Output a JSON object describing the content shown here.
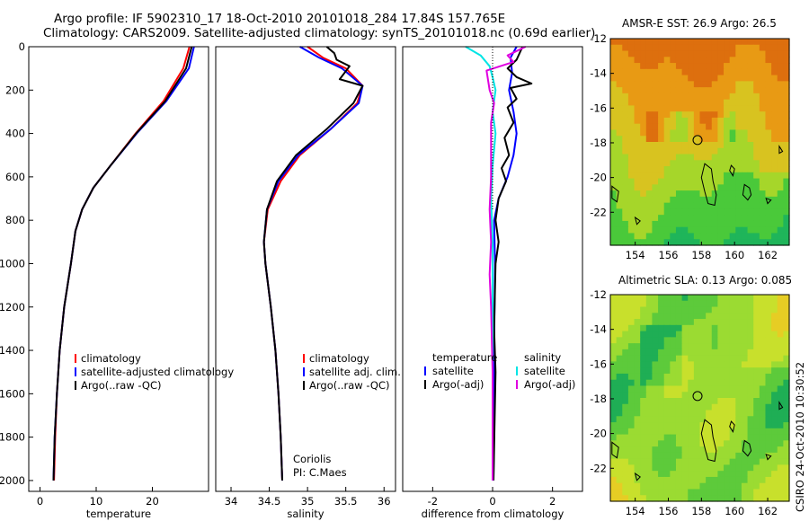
{
  "header": {
    "line1": "Argo profile: IF 5902310_17 18-Oct-2010 20101018_284 17.84S 157.765E",
    "line2": "Climatology: CARS2009. Satellite-adjusted climatology: synTS_20101018.nc (0.69d earlier)"
  },
  "credit": "CSIRO 24-Oct-2010 10:30:52",
  "colors": {
    "climatology": "#ff0000",
    "satellite": "#0000ff",
    "argo": "#000000",
    "salinity_satellite": "#00e5e5",
    "salinity_argo": "#e000e0"
  },
  "chart_data": [
    {
      "id": "temperature",
      "type": "line",
      "xlabel": "temperature",
      "ylabel": "",
      "xlim": [
        -2,
        30
      ],
      "ylim": [
        2050,
        0
      ],
      "xticks": [
        0,
        10,
        20
      ],
      "yticks": [
        0,
        200,
        400,
        600,
        800,
        1000,
        1200,
        1400,
        1600,
        1800,
        2000
      ],
      "legend": [
        "climatology",
        "satellite-adjusted climatology",
        "Argo(..raw -QC)"
      ],
      "legend_position": "lower-right",
      "series": [
        {
          "name": "climatology",
          "color": "#ff0000",
          "points": [
            [
              26.6,
              0
            ],
            [
              25.5,
              100
            ],
            [
              22.0,
              250
            ],
            [
              17.0,
              400
            ],
            [
              12.5,
              550
            ],
            [
              9.5,
              650
            ],
            [
              7.5,
              750
            ],
            [
              6.3,
              850
            ],
            [
              5.5,
              1000
            ],
            [
              4.3,
              1200
            ],
            [
              3.5,
              1400
            ],
            [
              3.0,
              1600
            ],
            [
              2.7,
              1800
            ],
            [
              2.5,
              2000
            ]
          ]
        },
        {
          "name": "satellite-adjusted climatology",
          "color": "#0000ff",
          "points": [
            [
              27.4,
              0
            ],
            [
              26.5,
              100
            ],
            [
              22.5,
              250
            ],
            [
              17.2,
              400
            ],
            [
              12.5,
              550
            ],
            [
              9.5,
              650
            ],
            [
              7.5,
              750
            ],
            [
              6.3,
              850
            ],
            [
              5.5,
              1000
            ],
            [
              4.3,
              1200
            ],
            [
              3.5,
              1400
            ],
            [
              3.0,
              1600
            ],
            [
              2.6,
              1800
            ],
            [
              2.4,
              2000
            ]
          ]
        },
        {
          "name": "Argo(..raw -QC)",
          "color": "#000000",
          "points": [
            [
              27.0,
              0
            ],
            [
              26.0,
              100
            ],
            [
              22.3,
              250
            ],
            [
              17.1,
              400
            ],
            [
              12.5,
              550
            ],
            [
              9.5,
              650
            ],
            [
              7.5,
              750
            ],
            [
              6.3,
              850
            ],
            [
              5.5,
              1000
            ],
            [
              4.3,
              1200
            ],
            [
              3.5,
              1400
            ],
            [
              3.0,
              1600
            ],
            [
              2.6,
              1800
            ],
            [
              2.4,
              2000
            ]
          ]
        }
      ]
    },
    {
      "id": "salinity",
      "type": "line",
      "xlabel": "salinity",
      "ylabel": "",
      "xlim": [
        33.8,
        36.15
      ],
      "ylim": [
        2050,
        0
      ],
      "xticks": [
        34,
        34.5,
        35,
        35.5,
        36
      ],
      "yticks": [],
      "legend": [
        "climatology",
        "satellite adj. clim.",
        "Argo(..raw -QC)"
      ],
      "legend_position": "lower-right",
      "annotation": [
        "Coriolis",
        "PI: C.Maes"
      ],
      "series": [
        {
          "name": "climatology",
          "color": "#ff0000",
          "points": [
            [
              35.0,
              0
            ],
            [
              35.2,
              50
            ],
            [
              35.5,
              100
            ],
            [
              35.72,
              180
            ],
            [
              35.65,
              260
            ],
            [
              35.3,
              380
            ],
            [
              34.9,
              500
            ],
            [
              34.65,
              620
            ],
            [
              34.48,
              750
            ],
            [
              34.43,
              900
            ],
            [
              34.45,
              1000
            ],
            [
              34.52,
              1200
            ],
            [
              34.58,
              1400
            ],
            [
              34.62,
              1600
            ],
            [
              34.65,
              1800
            ],
            [
              34.67,
              2000
            ]
          ]
        },
        {
          "name": "satellite adj. clim.",
          "color": "#0000ff",
          "points": [
            [
              34.9,
              0
            ],
            [
              35.15,
              50
            ],
            [
              35.45,
              100
            ],
            [
              35.72,
              180
            ],
            [
              35.67,
              260
            ],
            [
              35.3,
              380
            ],
            [
              34.88,
              500
            ],
            [
              34.62,
              620
            ],
            [
              34.47,
              750
            ],
            [
              34.43,
              900
            ],
            [
              34.45,
              1000
            ],
            [
              34.52,
              1200
            ],
            [
              34.58,
              1400
            ],
            [
              34.62,
              1600
            ],
            [
              34.65,
              1800
            ],
            [
              34.67,
              2000
            ]
          ]
        },
        {
          "name": "Argo(..raw -QC)",
          "color": "#000000",
          "points": [
            [
              35.25,
              0
            ],
            [
              35.35,
              30
            ],
            [
              35.38,
              60
            ],
            [
              35.55,
              90
            ],
            [
              35.42,
              150
            ],
            [
              35.72,
              180
            ],
            [
              35.6,
              260
            ],
            [
              35.25,
              380
            ],
            [
              34.85,
              500
            ],
            [
              34.6,
              620
            ],
            [
              34.47,
              750
            ],
            [
              34.43,
              900
            ],
            [
              34.45,
              1000
            ],
            [
              34.52,
              1200
            ],
            [
              34.58,
              1400
            ],
            [
              34.62,
              1600
            ],
            [
              34.65,
              1800
            ],
            [
              34.67,
              2000
            ]
          ]
        }
      ]
    },
    {
      "id": "difference",
      "type": "line",
      "xlabel": "difference from climatology",
      "ylabel": "",
      "xlim": [
        -3.0,
        3.0
      ],
      "ylim": [
        2050,
        0
      ],
      "xticks": [
        -2,
        0,
        2
      ],
      "yticks": [],
      "legend_groups": [
        {
          "title": "temperature",
          "items": [
            "satellite",
            "Argo(-adj)"
          ]
        },
        {
          "title": "salinity",
          "items": [
            "satellite",
            "Argo(-adj)"
          ]
        }
      ],
      "legend_position": "lower-center",
      "series": [
        {
          "name": "temperature satellite",
          "color": "#0000ff",
          "points": [
            [
              0.8,
              0
            ],
            [
              0.6,
              50
            ],
            [
              0.65,
              120
            ],
            [
              0.55,
              200
            ],
            [
              0.7,
              300
            ],
            [
              0.8,
              400
            ],
            [
              0.7,
              500
            ],
            [
              0.5,
              600
            ],
            [
              0.2,
              700
            ],
            [
              0.05,
              800
            ],
            [
              0.08,
              1000
            ],
            [
              0.05,
              1400
            ],
            [
              0.03,
              2000
            ]
          ]
        },
        {
          "name": "temperature Argo(-adj)",
          "color": "#000000",
          "points": [
            [
              1.0,
              0
            ],
            [
              0.8,
              60
            ],
            [
              0.5,
              100
            ],
            [
              0.8,
              140
            ],
            [
              1.3,
              170
            ],
            [
              0.6,
              190
            ],
            [
              0.8,
              240
            ],
            [
              0.5,
              280
            ],
            [
              0.7,
              350
            ],
            [
              0.4,
              420
            ],
            [
              0.55,
              500
            ],
            [
              0.3,
              560
            ],
            [
              0.45,
              620
            ],
            [
              0.2,
              700
            ],
            [
              0.1,
              800
            ],
            [
              0.2,
              900
            ],
            [
              0.1,
              1000
            ],
            [
              0.05,
              1300
            ],
            [
              0.1,
              1500
            ],
            [
              0.03,
              2000
            ]
          ]
        },
        {
          "name": "salinity satellite",
          "color": "#00e5e5",
          "points": [
            [
              -0.9,
              0
            ],
            [
              -0.4,
              40
            ],
            [
              -0.1,
              90
            ],
            [
              0.0,
              140
            ],
            [
              0.1,
              200
            ],
            [
              0.0,
              300
            ],
            [
              0.1,
              400
            ],
            [
              0.0,
              550
            ],
            [
              -0.05,
              700
            ],
            [
              0.0,
              900
            ],
            [
              0.0,
              1200
            ],
            [
              0.0,
              2000
            ]
          ]
        },
        {
          "name": "salinity Argo(-adj)",
          "color": "#e000e0",
          "points": [
            [
              1.1,
              0
            ],
            [
              0.5,
              40
            ],
            [
              0.7,
              70
            ],
            [
              -0.2,
              110
            ],
            [
              -0.1,
              200
            ],
            [
              0.05,
              260
            ],
            [
              -0.05,
              350
            ],
            [
              -0.05,
              450
            ],
            [
              -0.05,
              600
            ],
            [
              -0.1,
              750
            ],
            [
              -0.05,
              900
            ],
            [
              -0.1,
              1050
            ],
            [
              -0.05,
              1200
            ],
            [
              0.0,
              1500
            ],
            [
              0.0,
              2000
            ]
          ]
        },
        {
          "name": "zero-line",
          "color": "#000000",
          "style": "dotted",
          "points": [
            [
              0,
              0
            ],
            [
              0,
              750
            ]
          ]
        }
      ]
    },
    {
      "id": "sst-map",
      "type": "heatmap",
      "title": "AMSR-E SST: 26.9 Argo: 26.5",
      "xlim": [
        152.5,
        163.3
      ],
      "ylim": [
        -23.9,
        -12
      ],
      "xticks": [
        154,
        156,
        158,
        160,
        162
      ],
      "yticks": [
        -12,
        -14,
        -16,
        -18,
        -20,
        -22
      ],
      "marker": {
        "lon": 157.765,
        "lat": -17.84
      },
      "colors": [
        "#dd6f0e",
        "#e89a14",
        "#d8c320",
        "#a6d62a",
        "#4ac93a",
        "#1fb55a",
        "#15a0b5",
        "#1e8de6"
      ]
    },
    {
      "id": "sla-map",
      "type": "heatmap",
      "title": "Altimetric SLA: 0.13 Argo: 0.085",
      "xlim": [
        152.5,
        163.3
      ],
      "ylim": [
        -23.9,
        -12
      ],
      "xticks": [
        154,
        156,
        158,
        160,
        162
      ],
      "yticks": [
        -12,
        -14,
        -16,
        -18,
        -20,
        -22
      ],
      "marker": {
        "lon": 157.765,
        "lat": -17.84
      },
      "colors": [
        "#1fae55",
        "#5dca3b",
        "#9bdb32",
        "#c8e02c",
        "#e6cd24",
        "#ecae1c"
      ]
    }
  ]
}
